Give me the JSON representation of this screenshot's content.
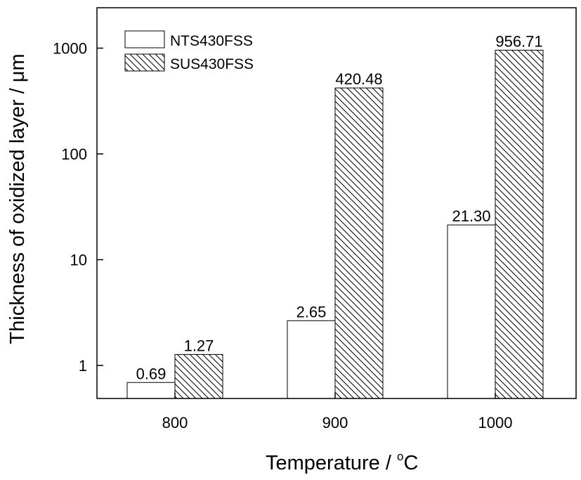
{
  "chart_data": {
    "type": "bar",
    "title": "",
    "xlabel": "Temperature / °C",
    "xlabel_main": "Temperature / ",
    "xlabel_degree": "o",
    "xlabel_unit": "C",
    "ylabel": "Thickness of oxidized layer / μm",
    "yscale": "log",
    "ylim": [
      0.4,
      2000
    ],
    "yticks": [
      1,
      10,
      100,
      1000
    ],
    "ytick_labels": [
      "1",
      "10",
      "100",
      "1000"
    ],
    "categories": [
      "800",
      "900",
      "1000"
    ],
    "series": [
      {
        "name": "NTS430FSS",
        "pattern": "open",
        "values": [
          0.69,
          2.65,
          21.3
        ],
        "labels": [
          "0.69",
          "2.65",
          "21.30"
        ]
      },
      {
        "name": "SUS430FSS",
        "pattern": "hatched",
        "values": [
          1.27,
          420.48,
          956.71
        ],
        "labels": [
          "1.27",
          "420.48",
          "956.71"
        ]
      }
    ],
    "legend_position": "top-left",
    "grid": false
  }
}
